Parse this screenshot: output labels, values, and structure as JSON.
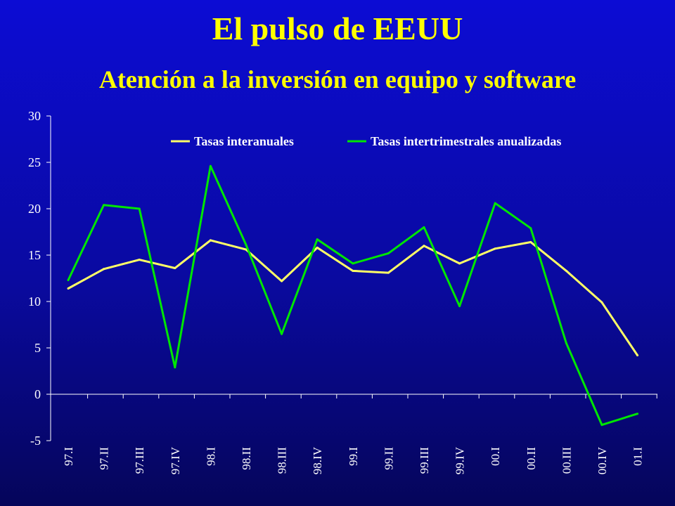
{
  "title": "El pulso de EEUU",
  "subtitle": "Atención a la inversión en equipo y software",
  "chart_data": {
    "type": "line",
    "categories": [
      "97.I",
      "97.II",
      "97.III",
      "97.IV",
      "98.I",
      "98.II",
      "98.III",
      "98.IV",
      "99.I",
      "99.II",
      "99.III",
      "99.IV",
      "00.I",
      "00.II",
      "00.III",
      "00.IV",
      "01.I"
    ],
    "series": [
      {
        "name": "Tasas interanuales",
        "color": "#ffff66",
        "values": [
          11.4,
          13.5,
          14.5,
          13.6,
          16.6,
          15.6,
          12.2,
          15.8,
          13.3,
          13.1,
          16.0,
          14.1,
          15.7,
          16.4,
          13.3,
          9.9,
          4.2
        ]
      },
      {
        "name": "Tasas intertrimestrales anualizadas",
        "color": "#00e600",
        "values": [
          12.3,
          20.4,
          20.0,
          2.9,
          24.6,
          16.1,
          6.5,
          16.7,
          14.1,
          15.2,
          18.0,
          9.5,
          20.6,
          17.9,
          5.5,
          -3.3,
          -2.1
        ]
      }
    ],
    "yticks": [
      -5,
      0,
      5,
      10,
      15,
      20,
      25,
      30
    ],
    "ylim": [
      -5,
      30
    ],
    "legend": "top",
    "grid": false
  }
}
